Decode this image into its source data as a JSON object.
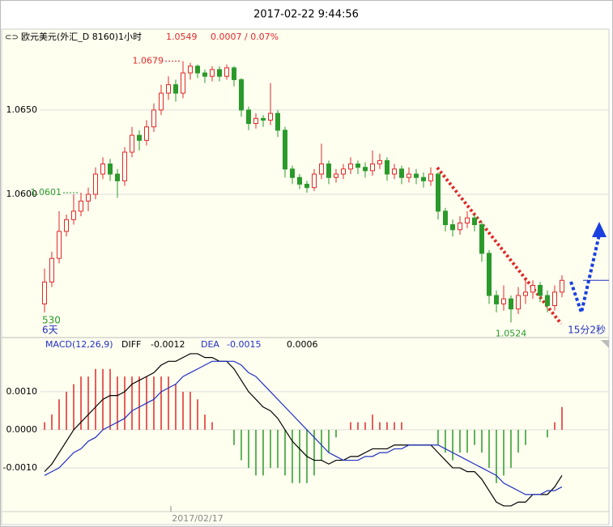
{
  "header": {
    "timestamp": "2017-02-22 9:44:56"
  },
  "chart_data": [
    {
      "type": "candlestick",
      "title": "欧元美元(外汇_D 8160)1小时",
      "last_price": "1.0549",
      "change": "0.0007 / 0.07%",
      "up_color": "#e02828",
      "down_color": "#2a9a2a",
      "ylim": [
        1.0516,
        1.0697
      ],
      "yticks": [
        {
          "value": 1.065,
          "label": "1.0650"
        },
        {
          "value": 1.06,
          "label": "1.0600"
        }
      ],
      "grid": true,
      "categories": [
        null,
        null,
        null,
        null,
        null,
        null,
        null,
        null,
        null,
        null,
        null,
        null,
        null,
        null,
        null,
        null,
        null,
        null,
        null,
        null,
        null,
        "2017/02/17",
        null,
        null,
        null,
        null,
        null,
        null,
        null,
        null,
        null,
        null,
        null,
        null,
        null,
        null,
        null,
        null,
        null,
        null,
        null,
        null,
        null,
        null,
        null,
        null,
        null,
        null,
        null,
        null,
        null,
        null,
        null,
        null,
        null,
        null,
        null,
        null,
        null,
        null,
        null,
        null,
        null,
        null,
        null,
        null,
        null,
        null,
        null,
        null,
        null,
        null
      ],
      "open": [
        1.0535,
        1.0548,
        1.0562,
        1.0578,
        1.0585,
        1.059,
        1.0596,
        1.06,
        1.0612,
        1.0618,
        1.0612,
        1.0608,
        1.0625,
        1.0635,
        1.0632,
        1.064,
        1.065,
        1.066,
        1.0665,
        1.066,
        1.0672,
        1.0676,
        1.0672,
        1.067,
        1.0674,
        1.067,
        1.0675,
        1.0668,
        1.065,
        1.0642,
        1.0645,
        1.0644,
        1.0648,
        1.0638,
        1.0615,
        1.061,
        1.0606,
        1.0604,
        1.0612,
        1.0618,
        1.061,
        1.0612,
        1.0615,
        1.0618,
        1.0616,
        1.0614,
        1.0618,
        1.062,
        1.0612,
        1.0615,
        1.061,
        1.0612,
        1.061,
        1.0608,
        1.0612,
        1.059,
        1.0582,
        1.0579,
        1.0583,
        1.0586,
        1.0582,
        1.0565,
        1.054,
        1.0535,
        1.0538,
        1.0532,
        1.054,
        1.0542,
        1.0546,
        1.054,
        1.0534,
        1.0542
      ],
      "high": [
        1.0556,
        1.0566,
        1.059,
        1.0588,
        1.06,
        1.0601,
        1.0604,
        1.0616,
        1.0622,
        1.0621,
        1.0615,
        1.0628,
        1.064,
        1.0638,
        1.0644,
        1.0654,
        1.0665,
        1.067,
        1.0668,
        1.0679,
        1.0678,
        1.0677,
        1.0674,
        1.0676,
        1.0676,
        1.0677,
        1.0676,
        1.0669,
        1.0652,
        1.0648,
        1.0647,
        1.0666,
        1.065,
        1.064,
        1.0617,
        1.0612,
        1.0608,
        1.0615,
        1.063,
        1.062,
        1.0615,
        1.0618,
        1.0622,
        1.062,
        1.0619,
        1.0626,
        1.0624,
        1.0622,
        1.0618,
        1.0617,
        1.0616,
        1.0615,
        1.0613,
        1.0616,
        1.0613,
        1.0592,
        1.0585,
        1.0587,
        1.059,
        1.0588,
        1.0584,
        1.0567,
        1.0543,
        1.0546,
        1.054,
        1.0545,
        1.055,
        1.0549,
        1.0548,
        1.0543,
        1.0546,
        1.0552
      ],
      "low": [
        1.053,
        1.0545,
        1.0559,
        1.0575,
        1.0582,
        1.0587,
        1.059,
        1.0597,
        1.0609,
        1.0608,
        1.0598,
        1.0605,
        1.0622,
        1.0626,
        1.0629,
        1.0637,
        1.0647,
        1.0656,
        1.0655,
        1.0657,
        1.0668,
        1.0669,
        1.0666,
        1.0667,
        1.0667,
        1.0668,
        1.0664,
        1.0646,
        1.0638,
        1.0639,
        1.064,
        1.0641,
        1.0634,
        1.061,
        1.0606,
        1.0603,
        1.0601,
        1.0602,
        1.0609,
        1.0606,
        1.0607,
        1.0609,
        1.0612,
        1.0612,
        1.061,
        1.0611,
        1.0615,
        1.0608,
        1.0609,
        1.0606,
        1.0607,
        1.0606,
        1.0604,
        1.0605,
        1.0585,
        1.0578,
        1.0575,
        1.0576,
        1.058,
        1.0578,
        1.056,
        1.0535,
        1.053,
        1.0531,
        1.0524,
        1.0529,
        1.0535,
        1.0538,
        1.0536,
        1.053,
        1.0531,
        1.0539
      ],
      "close": [
        1.0548,
        1.0562,
        1.0578,
        1.0585,
        1.059,
        1.0596,
        1.06,
        1.0612,
        1.0618,
        1.0612,
        1.0608,
        1.0625,
        1.0635,
        1.0632,
        1.064,
        1.065,
        1.066,
        1.0665,
        1.066,
        1.0672,
        1.0676,
        1.0672,
        1.067,
        1.0674,
        1.067,
        1.0675,
        1.0668,
        1.065,
        1.0642,
        1.0645,
        1.0644,
        1.0648,
        1.0638,
        1.0615,
        1.061,
        1.0606,
        1.0604,
        1.0612,
        1.0618,
        1.061,
        1.0612,
        1.0615,
        1.0618,
        1.0616,
        1.0614,
        1.0618,
        1.062,
        1.0612,
        1.0615,
        1.061,
        1.0612,
        1.061,
        1.0608,
        1.0612,
        1.059,
        1.0582,
        1.0579,
        1.0583,
        1.0586,
        1.0582,
        1.0565,
        1.054,
        1.0535,
        1.0538,
        1.0532,
        1.054,
        1.0542,
        1.0546,
        1.054,
        1.0534,
        1.0542,
        1.0549
      ],
      "annotations": [
        {
          "text": "1.0679",
          "value": 1.0679,
          "color": "#e02828"
        },
        {
          "text": "1.0601",
          "value": 1.0601,
          "color": "#2a9a2a"
        },
        {
          "text": "1.0524",
          "value": 1.0524,
          "color": "#2a9a2a"
        }
      ],
      "corner_labels": [
        "530",
        "6天"
      ],
      "countdown": "15分2秒"
    },
    {
      "type": "macd",
      "title": "MACD(12,26,9)",
      "legend_values": [
        "-0.0012",
        "-0.0015",
        "0.0006"
      ],
      "ylim": [
        -0.00215,
        0.00236
      ],
      "yticks": [
        {
          "value": 0.001,
          "label": "0.0010"
        },
        {
          "value": 0,
          "label": "0.0000"
        },
        {
          "value": -0.001,
          "label": "-0.0010"
        }
      ],
      "series": [
        {
          "name": "DIFF",
          "color": "#000000",
          "values": [
            -0.0011,
            -0.0009,
            -0.0006,
            -0.0003,
            0,
            0.0002,
            0.0004,
            0.0006,
            0.0008,
            0.0009,
            0.0009,
            0.001,
            0.0012,
            0.0013,
            0.0014,
            0.0015,
            0.0017,
            0.0018,
            0.0018,
            0.0019,
            0.002,
            0.002,
            0.0019,
            0.0019,
            0.0018,
            0.0018,
            0.0016,
            0.0013,
            0.001,
            0.0008,
            0.0006,
            0.0005,
            0.0003,
            0,
            -0.0003,
            -0.0005,
            -0.0007,
            -0.0008,
            -0.0008,
            -0.0009,
            -0.0008,
            -0.0008,
            -0.0007,
            -0.0007,
            -0.0006,
            -0.0005,
            -0.0005,
            -0.0005,
            -0.0004,
            -0.0004,
            -0.0004,
            -0.0004,
            -0.0004,
            -0.0004,
            -0.0006,
            -0.0008,
            -0.001,
            -0.001,
            -0.0011,
            -0.0011,
            -0.0013,
            -0.0016,
            -0.0019,
            -0.002,
            -0.002,
            -0.0019,
            -0.0019,
            -0.0017,
            -0.0017,
            -0.0017,
            -0.0015,
            -0.0012
          ]
        },
        {
          "name": "DEA",
          "color": "#2030c0",
          "values": [
            -0.0012,
            -0.0011,
            -0.001,
            -0.0008,
            -0.0006,
            -0.0005,
            -0.0003,
            -0.0002,
            0,
            0.0001,
            0.0002,
            0.0003,
            0.0005,
            0.0006,
            0.0007,
            0.0008,
            0.001,
            0.0011,
            0.0012,
            0.0014,
            0.0015,
            0.0016,
            0.0017,
            0.0018,
            0.0018,
            0.0018,
            0.0018,
            0.0017,
            0.0015,
            0.0014,
            0.0012,
            0.001,
            0.0008,
            0.0006,
            0.0004,
            0.0002,
            0,
            -0.0002,
            -0.0004,
            -0.0006,
            -0.0007,
            -0.0008,
            -0.0008,
            -0.0008,
            -0.0007,
            -0.0007,
            -0.0006,
            -0.0006,
            -0.0005,
            -0.0005,
            -0.0004,
            -0.0004,
            -0.0004,
            -0.0004,
            -0.0004,
            -0.0005,
            -0.0006,
            -0.0007,
            -0.0008,
            -0.0009,
            -0.001,
            -0.0011,
            -0.0012,
            -0.0014,
            -0.0015,
            -0.0016,
            -0.0017,
            -0.0017,
            -0.0017,
            -0.0016,
            -0.0016,
            -0.0015
          ]
        }
      ],
      "histogram": {
        "up_color": "#e02828",
        "down_color": "#2a9a2a",
        "values": [
          0.0002,
          0.0004,
          0.0008,
          0.001,
          0.0012,
          0.0014,
          0.0014,
          0.0016,
          0.0016,
          0.0016,
          0.0014,
          0.0014,
          0.0014,
          0.0014,
          0.0014,
          0.0014,
          0.0014,
          0.0014,
          0.0012,
          0.001,
          0.001,
          0.0008,
          0.0004,
          0.0002,
          0,
          0,
          -0.0004,
          -0.0008,
          -0.001,
          -0.0012,
          -0.0012,
          -0.001,
          -0.001,
          -0.0012,
          -0.0014,
          -0.0014,
          -0.0014,
          -0.0012,
          -0.0008,
          -0.0006,
          -0.0002,
          0,
          0.0002,
          0.0002,
          0.0002,
          0.0004,
          0.0002,
          0.0002,
          0.0002,
          0.0002,
          0,
          0,
          0,
          0,
          -0.0004,
          -0.0006,
          -0.0008,
          -0.0006,
          -0.0006,
          -0.0004,
          -0.0006,
          -0.001,
          -0.0014,
          -0.0012,
          -0.001,
          -0.0006,
          -0.0004,
          0,
          0,
          -0.0002,
          0.0002,
          0.0006
        ]
      }
    }
  ]
}
